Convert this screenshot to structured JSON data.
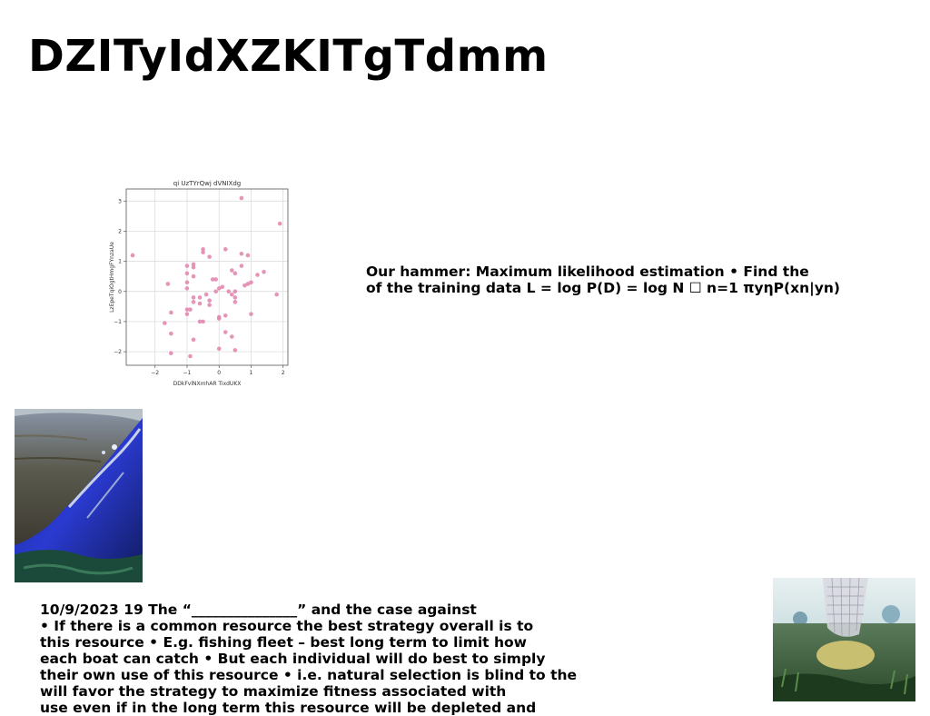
{
  "slide": {
    "title": "DZITyIdXZKITgTdmm",
    "mle_lines": [
      "Our hammer: Maximum likelihood estimation • Find the",
      "of the training data L = log P(D) = log N ☐ n=1 πyηP(xn|yn)"
    ],
    "body_lines": [
      "10/9/2023 19 The “_______________” and the case against",
      "• If there is a common resource the best strategy overall is to",
      "this resource • E.g. fishing fleet – best long term to limit how",
      "each boat can catch • But each individual will do best to simply",
      "their own use of this resource • i.e. natural selection is blind to the",
      "will favor the strategy to maximize fitness associated with",
      "use even if in the long term this resource will be depleted and"
    ]
  },
  "chart_data": {
    "type": "scatter",
    "title": "qi UzTYrQwj dVNIXdg",
    "xlabel": "DDkFvlNXmhAR TixdUKX",
    "ylabel": "LzEpeTqiOgtHmgFYnzaUe",
    "xlim": [
      -2.9,
      2.15
    ],
    "ylim": [
      -2.45,
      3.4
    ],
    "xticks": [
      "−2",
      "−1",
      "0",
      "1",
      "2"
    ],
    "xtick_values": [
      -2,
      -1,
      0,
      1,
      2
    ],
    "yticks": [
      "−2",
      "−1",
      "0",
      "1",
      "2",
      "3"
    ],
    "ytick_values": [
      -2,
      -1,
      0,
      1,
      2,
      3
    ],
    "grid": true,
    "marker_color": "#e28ab0",
    "x": [
      0.7,
      1.9,
      -2.7,
      -0.5,
      -0.5,
      -0.3,
      0.2,
      0.7,
      0.9,
      0.7,
      -0.8,
      -0.8,
      -1.0,
      -0.8,
      1.4,
      1.2,
      -1.0,
      -1.0,
      -0.2,
      0.5,
      0.4,
      1.0,
      -1.6,
      -1.0,
      0.9,
      0.8,
      0.1,
      0.0,
      0.3,
      -0.1,
      -0.1,
      0.5,
      -0.4,
      -0.6,
      0.4,
      0.5,
      -0.8,
      -0.8,
      -0.6,
      -0.3,
      -1.0,
      -1.0,
      0.5,
      -0.9,
      1.8,
      -1.5,
      1.0,
      0.0,
      -0.5,
      -1.7,
      -0.3,
      0.0,
      0.2,
      -0.6,
      -1.5,
      0.2,
      -0.8,
      0.4,
      0.0,
      0.5,
      -1.5,
      -0.9
    ],
    "y": [
      3.1,
      2.25,
      1.2,
      1.3,
      1.4,
      1.15,
      1.4,
      1.25,
      1.2,
      0.85,
      0.9,
      0.8,
      0.85,
      0.5,
      0.65,
      0.55,
      0.6,
      0.3,
      0.4,
      0.6,
      0.7,
      0.3,
      0.25,
      0.1,
      0.25,
      0.2,
      0.15,
      0.1,
      0.0,
      0.0,
      0.4,
      0.0,
      -0.1,
      -0.2,
      -0.1,
      -0.2,
      -0.2,
      -0.35,
      -0.4,
      -0.3,
      -0.6,
      -0.75,
      -0.35,
      -0.6,
      -0.1,
      -0.7,
      -0.75,
      -0.85,
      -1.0,
      -1.05,
      -0.45,
      -0.9,
      -0.8,
      -1.0,
      -1.4,
      -1.35,
      -1.6,
      -1.5,
      -1.9,
      -1.95,
      -2.05,
      -2.15
    ]
  },
  "images": {
    "lake_photo_icon": "rocky-lake-shore-photo",
    "grass_photo_icon": "grass-field-mesh-sculpture-photo"
  }
}
